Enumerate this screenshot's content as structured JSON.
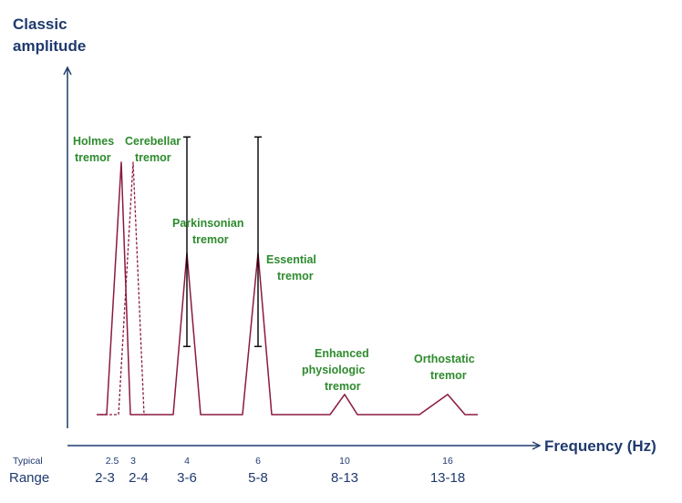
{
  "chart_data": {
    "type": "line",
    "xlabel": "Frequency (Hz)",
    "ylabel_lines": [
      "Classic",
      "amplitude"
    ],
    "grid": false,
    "row_labels": {
      "typical": "Typical",
      "range": "Range"
    },
    "colors": {
      "axis": "#1f3a6e",
      "peak": "#8b1a3f",
      "label": "#2e8b2e",
      "errorbar": "#000000"
    },
    "series": [
      {
        "name": "Holmes tremor",
        "label_lines": [
          "Holmes",
          "tremor"
        ],
        "typical": "2.5",
        "range": "2-3",
        "style": "solid",
        "amplitude": 1.0
      },
      {
        "name": "Cerebellar tremor",
        "label_lines": [
          "Cerebellar",
          "tremor"
        ],
        "typical": "3",
        "range": "2-4",
        "style": "dashed",
        "amplitude": 1.0
      },
      {
        "name": "Parkinsonian tremor",
        "label_lines": [
          "Parkinsonian",
          "tremor"
        ],
        "typical": "4",
        "range": "3-6",
        "style": "solid",
        "amplitude": 0.64,
        "errorbar": [
          0.27,
          1.1
        ]
      },
      {
        "name": "Essential tremor",
        "label_lines": [
          "Essential",
          "tremor"
        ],
        "typical": "6",
        "range": "5-8",
        "style": "solid",
        "amplitude": 0.64,
        "errorbar": [
          0.27,
          1.1
        ]
      },
      {
        "name": "Enhanced physiologic tremor",
        "label_lines": [
          "Enhanced",
          "physiologic",
          "tremor"
        ],
        "typical": "10",
        "range": "8-13",
        "style": "solid",
        "amplitude": 0.08
      },
      {
        "name": "Orthostatic tremor",
        "label_lines": [
          "Orthostatic",
          "tremor"
        ],
        "typical": "16",
        "range": "13-18",
        "style": "solid",
        "amplitude": 0.08
      }
    ]
  }
}
